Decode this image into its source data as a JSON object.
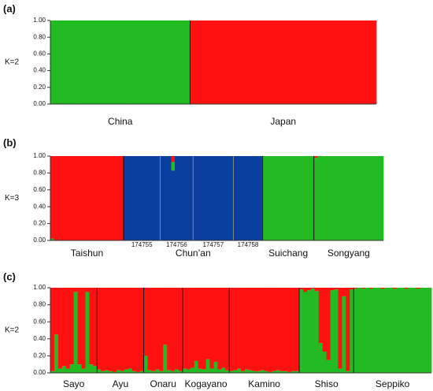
{
  "chart_data": [
    {
      "type": "structure",
      "panel": "(a)",
      "ylabel": "K=2",
      "ylim": [
        0,
        1
      ],
      "yticks": [
        {
          "value": 0,
          "label": "0.00"
        },
        {
          "value": 0.2,
          "label": "0.20"
        },
        {
          "value": 0.4,
          "label": "0.40"
        },
        {
          "value": 0.6,
          "label": "0.60"
        },
        {
          "value": 0.8,
          "label": "0.80"
        },
        {
          "value": 1,
          "label": "1.00"
        }
      ],
      "colors": [
        "#22bb22",
        "#ff1111"
      ],
      "groups": [
        {
          "label": "China",
          "values": [
            [
              1,
              0
            ],
            [
              1,
              0
            ],
            [
              1,
              0
            ],
            [
              1,
              0
            ],
            [
              1,
              0
            ],
            [
              1,
              0
            ],
            [
              1,
              0
            ],
            [
              1,
              0
            ],
            [
              1,
              0
            ]
          ]
        },
        {
          "label": "Japan",
          "values": [
            [
              0,
              1
            ],
            [
              0,
              1
            ],
            [
              0,
              1
            ],
            [
              0,
              1
            ],
            [
              0,
              1
            ],
            [
              0,
              1
            ],
            [
              0,
              1
            ],
            [
              0,
              1
            ],
            [
              0,
              1
            ],
            [
              0,
              1
            ],
            [
              0,
              1
            ],
            [
              0,
              1
            ]
          ]
        }
      ]
    },
    {
      "type": "structure",
      "panel": "(b)",
      "ylabel": "K=3",
      "ylim": [
        0,
        1
      ],
      "yticks": [
        {
          "value": 0,
          "label": "0.00"
        },
        {
          "value": 0.2,
          "label": "0.20"
        },
        {
          "value": 0.4,
          "label": "0.40"
        },
        {
          "value": 0.6,
          "label": "0.60"
        },
        {
          "value": 0.8,
          "label": "0.80"
        },
        {
          "value": 1,
          "label": "1.00"
        }
      ],
      "colors": [
        "#0a3fa0",
        "#22bb22",
        "#ff1111"
      ],
      "groups": [
        {
          "label": "Taishun",
          "values": [
            [
              0,
              0.02,
              0.98
            ],
            [
              0,
              0,
              1
            ],
            [
              0,
              0,
              1
            ],
            [
              0,
              0,
              1
            ],
            [
              0,
              0,
              1
            ],
            [
              0,
              0,
              1
            ],
            [
              0,
              0,
              1
            ],
            [
              0,
              0,
              1
            ],
            [
              0,
              0,
              1
            ],
            [
              0,
              0,
              1
            ],
            [
              0,
              0,
              1
            ],
            [
              0,
              0,
              1
            ],
            [
              0,
              0,
              1
            ],
            [
              0,
              0,
              1
            ],
            [
              0,
              0,
              1
            ],
            [
              0,
              0,
              1
            ],
            [
              0,
              0,
              1
            ],
            [
              0,
              0,
              1
            ],
            [
              0,
              0,
              1
            ],
            [
              0,
              0,
              1
            ]
          ]
        },
        {
          "label": "Chun’an",
          "subgroups": [
            {
              "label": "174755",
              "values": [
                [
                  1,
                  0,
                  0
                ],
                [
                  1,
                  0,
                  0
                ],
                [
                  1,
                  0,
                  0
                ],
                [
                  1,
                  0,
                  0
                ],
                [
                  1,
                  0,
                  0
                ],
                [
                  1,
                  0,
                  0
                ],
                [
                  1,
                  0,
                  0
                ],
                [
                  1,
                  0,
                  0
                ],
                [
                  1,
                  0,
                  0
                ],
                [
                  1,
                  0,
                  0
                ]
              ]
            },
            {
              "label": "174756",
              "values": [
                [
                  1,
                  0,
                  0
                ],
                [
                  1,
                  0,
                  0
                ],
                [
                  1,
                  0,
                  0
                ],
                [
                  0.83,
                  0.1,
                  0.07
                ],
                [
                  1,
                  0,
                  0
                ],
                [
                  1,
                  0,
                  0
                ],
                [
                  1,
                  0,
                  0
                ],
                [
                  1,
                  0,
                  0
                ],
                [
                  1,
                  0,
                  0
                ]
              ]
            },
            {
              "label": "174757",
              "values": [
                [
                  1,
                  0,
                  0
                ],
                [
                  1,
                  0,
                  0
                ],
                [
                  1,
                  0,
                  0
                ],
                [
                  1,
                  0,
                  0
                ],
                [
                  1,
                  0,
                  0
                ],
                [
                  1,
                  0,
                  0
                ],
                [
                  1,
                  0,
                  0
                ],
                [
                  1,
                  0,
                  0
                ],
                [
                  1,
                  0,
                  0
                ],
                [
                  1,
                  0,
                  0
                ],
                [
                  1,
                  0,
                  0
                ]
              ]
            },
            {
              "label": "174758",
              "values": [
                [
                  1,
                  0,
                  0
                ],
                [
                  1,
                  0,
                  0
                ],
                [
                  1,
                  0,
                  0
                ],
                [
                  1,
                  0,
                  0
                ],
                [
                  1,
                  0,
                  0
                ],
                [
                  1,
                  0,
                  0
                ],
                [
                  1,
                  0,
                  0
                ],
                [
                  1,
                  0,
                  0
                ]
              ]
            }
          ]
        },
        {
          "label": "Suichang",
          "values": [
            [
              0,
              1,
              0
            ],
            [
              0,
              1,
              0
            ],
            [
              0,
              1,
              0
            ],
            [
              0,
              1,
              0
            ],
            [
              0,
              1,
              0
            ],
            [
              0,
              1,
              0
            ],
            [
              0,
              1,
              0
            ],
            [
              0,
              1,
              0
            ],
            [
              0,
              1,
              0
            ],
            [
              0,
              1,
              0
            ],
            [
              0,
              1,
              0
            ],
            [
              0,
              1,
              0
            ],
            [
              0,
              1,
              0
            ],
            [
              0,
              1,
              0
            ]
          ]
        },
        {
          "label": "Songyang",
          "values": [
            [
              0,
              0.98,
              0.02
            ],
            [
              0,
              1,
              0
            ],
            [
              0,
              1,
              0
            ],
            [
              0,
              1,
              0
            ],
            [
              0,
              1,
              0
            ],
            [
              0,
              1,
              0
            ],
            [
              0,
              1,
              0
            ],
            [
              0,
              1,
              0
            ],
            [
              0,
              1,
              0
            ],
            [
              0,
              1,
              0
            ],
            [
              0,
              1,
              0
            ],
            [
              0,
              1,
              0
            ],
            [
              0,
              1,
              0
            ],
            [
              0,
              1,
              0
            ],
            [
              0,
              1,
              0
            ],
            [
              0,
              1,
              0
            ],
            [
              0,
              1,
              0
            ],
            [
              0,
              1,
              0
            ],
            [
              0,
              1,
              0
            ]
          ]
        }
      ]
    },
    {
      "type": "structure",
      "panel": "(c)",
      "ylabel": "K=2",
      "ylim": [
        0,
        1
      ],
      "yticks": [
        {
          "value": 0,
          "label": "0.00"
        },
        {
          "value": 0.2,
          "label": "0.20"
        },
        {
          "value": 0.4,
          "label": "0.40"
        },
        {
          "value": 0.6,
          "label": "0.60"
        },
        {
          "value": 0.8,
          "label": "0.80"
        },
        {
          "value": 1,
          "label": "1.00"
        }
      ],
      "colors": [
        "#22bb22",
        "#ff1111"
      ],
      "groups": [
        {
          "label": "Sayo",
          "values": [
            [
              0.02,
              0.98
            ],
            [
              0.45,
              0.55
            ],
            [
              0.05,
              0.95
            ],
            [
              0.08,
              0.92
            ],
            [
              0.05,
              0.95
            ],
            [
              0.1,
              0.9
            ],
            [
              0.95,
              0.05
            ],
            [
              0.1,
              0.9
            ],
            [
              0.05,
              0.95
            ],
            [
              0.95,
              0.05
            ],
            [
              0.1,
              0.9
            ],
            [
              0.08,
              0.92
            ]
          ]
        },
        {
          "label": "Ayu",
          "values": [
            [
              0.04,
              0.96
            ],
            [
              0.02,
              0.98
            ],
            [
              0.03,
              0.97
            ],
            [
              0.02,
              0.98
            ],
            [
              0.01,
              0.99
            ],
            [
              0.03,
              0.97
            ],
            [
              0.02,
              0.98
            ],
            [
              0.04,
              0.96
            ],
            [
              0.05,
              0.95
            ],
            [
              0.02,
              0.98
            ],
            [
              0.01,
              0.99
            ],
            [
              0.02,
              0.98
            ]
          ]
        },
        {
          "label": "Onaru",
          "values": [
            [
              0.2,
              0.8
            ],
            [
              0.03,
              0.97
            ],
            [
              0.02,
              0.98
            ],
            [
              0.04,
              0.96
            ],
            [
              0.02,
              0.98
            ],
            [
              0.33,
              0.67
            ],
            [
              0.03,
              0.97
            ],
            [
              0.02,
              0.98
            ],
            [
              0.04,
              0.96
            ],
            [
              0.02,
              0.98
            ]
          ]
        },
        {
          "label": "Kogayano",
          "values": [
            [
              0.05,
              0.95
            ],
            [
              0.04,
              0.96
            ],
            [
              0.06,
              0.94
            ],
            [
              0.14,
              0.86
            ],
            [
              0.05,
              0.95
            ],
            [
              0.04,
              0.96
            ],
            [
              0.16,
              0.84
            ],
            [
              0.05,
              0.95
            ],
            [
              0.13,
              0.87
            ],
            [
              0.04,
              0.96
            ],
            [
              0.06,
              0.94
            ],
            [
              0.03,
              0.97
            ]
          ]
        },
        {
          "label": "Kamino",
          "values": [
            [
              0.02,
              0.98
            ],
            [
              0.03,
              0.97
            ],
            [
              0.05,
              0.95
            ],
            [
              0.02,
              0.98
            ],
            [
              0.04,
              0.96
            ],
            [
              0.03,
              0.97
            ],
            [
              0.02,
              0.98
            ],
            [
              0.02,
              0.98
            ],
            [
              0.03,
              0.97
            ],
            [
              0.02,
              0.98
            ],
            [
              0.01,
              0.99
            ],
            [
              0.02,
              0.98
            ],
            [
              0.03,
              0.97
            ],
            [
              0.02,
              0.98
            ],
            [
              0.02,
              0.98
            ],
            [
              0.01,
              0.99
            ],
            [
              0.02,
              0.98
            ],
            [
              0.02,
              0.98
            ]
          ]
        },
        {
          "label": "Shiso",
          "values": [
            [
              0.98,
              0.02
            ],
            [
              0.95,
              0.05
            ],
            [
              0.97,
              0.03
            ],
            [
              0.99,
              0.01
            ],
            [
              0.96,
              0.04
            ],
            [
              0.35,
              0.65
            ],
            [
              0.25,
              0.75
            ],
            [
              0.15,
              0.85
            ],
            [
              0.97,
              0.03
            ],
            [
              0.98,
              0.02
            ],
            [
              0.05,
              0.95
            ],
            [
              0.9,
              0.1
            ],
            [
              0.02,
              0.98
            ],
            [
              0.98,
              0.02
            ]
          ]
        },
        {
          "label": "Seppiko",
          "values": [
            [
              0.99,
              0.01
            ],
            [
              1,
              0
            ],
            [
              0.99,
              0.01
            ],
            [
              1,
              0
            ],
            [
              0.99,
              0.01
            ],
            [
              1,
              0
            ],
            [
              1,
              0
            ],
            [
              0.99,
              0.01
            ],
            [
              1,
              0
            ],
            [
              1,
              0
            ],
            [
              0.99,
              0.01
            ],
            [
              1,
              0
            ],
            [
              1,
              0
            ],
            [
              0.99,
              0.01
            ],
            [
              1,
              0
            ],
            [
              1,
              0
            ],
            [
              0.99,
              0.01
            ],
            [
              1,
              0
            ],
            [
              1,
              0
            ],
            [
              1,
              0
            ]
          ]
        }
      ]
    }
  ]
}
